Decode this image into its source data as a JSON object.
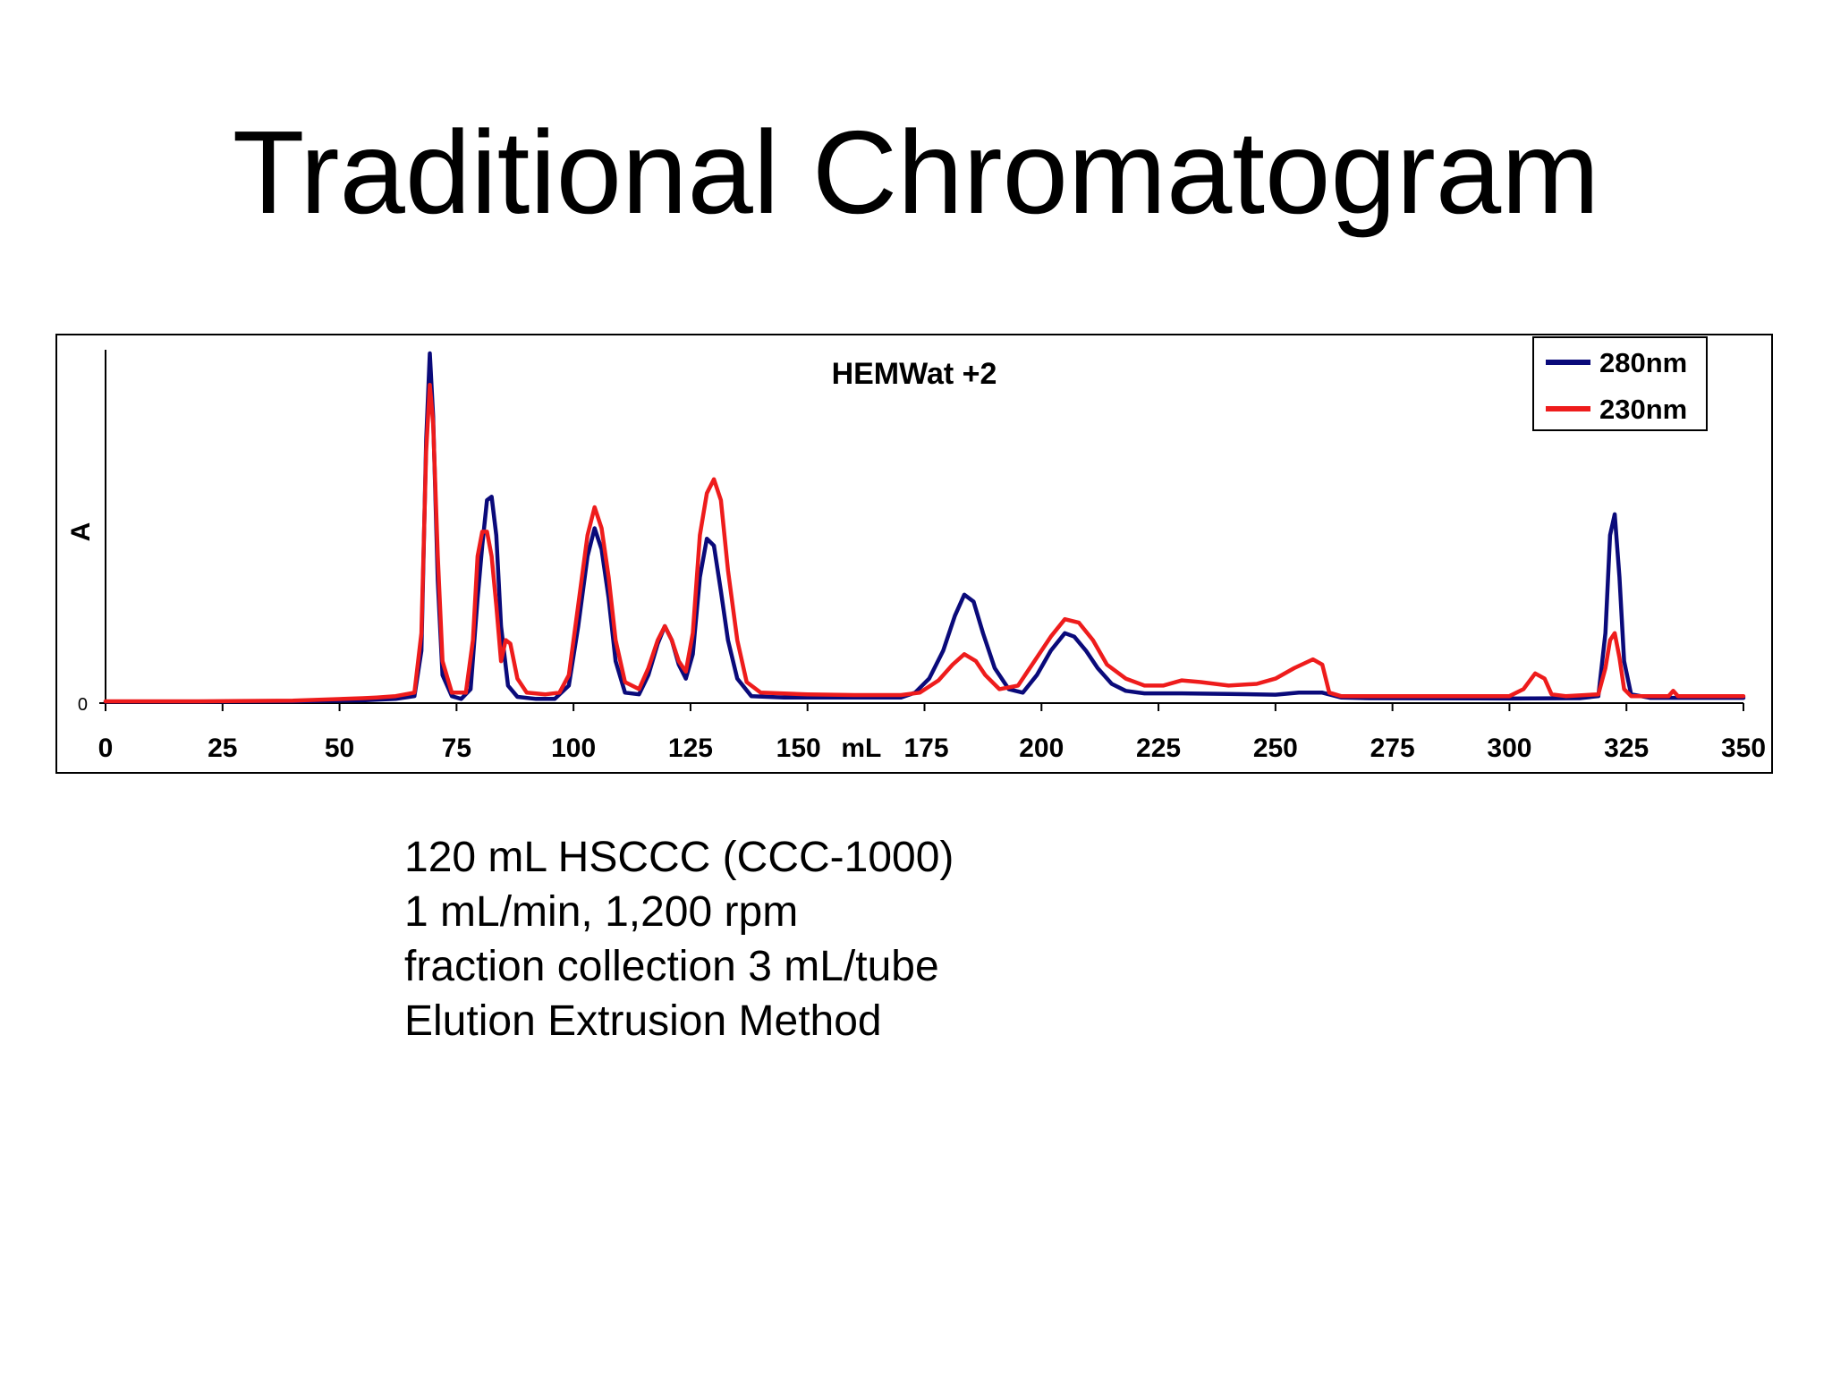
{
  "slide": {
    "title": "Traditional Chromatogram",
    "notes": [
      "120 mL HSCCC (CCC-1000)",
      "1 mL/min, 1,200 rpm",
      "fraction collection 3 mL/tube",
      "Elution Extrusion Method"
    ]
  },
  "chart_data": {
    "type": "line",
    "title": "HEMWat +2",
    "xlabel": "mL",
    "ylabel": "A",
    "xlim": [
      0,
      350
    ],
    "ylim": [
      0,
      100
    ],
    "x_ticks": [
      0,
      25,
      50,
      75,
      100,
      125,
      150,
      175,
      200,
      225,
      250,
      275,
      300,
      325,
      350
    ],
    "y_ticks": [
      0
    ],
    "legend_position": "top-right",
    "grid": false,
    "series": [
      {
        "name": "280nm",
        "color": "#0a0a7a",
        "points": [
          [
            0,
            0.4
          ],
          [
            20,
            0.4
          ],
          [
            40,
            0.5
          ],
          [
            55,
            0.8
          ],
          [
            62,
            1.2
          ],
          [
            66,
            2
          ],
          [
            67.5,
            15
          ],
          [
            68.5,
            75
          ],
          [
            69.3,
            100
          ],
          [
            70,
            82
          ],
          [
            71,
            35
          ],
          [
            72,
            8
          ],
          [
            74,
            2
          ],
          [
            76,
            1.2
          ],
          [
            78,
            4
          ],
          [
            79.5,
            30
          ],
          [
            80.5,
            45
          ],
          [
            81.5,
            58
          ],
          [
            82.5,
            59
          ],
          [
            83.5,
            48
          ],
          [
            84.5,
            22
          ],
          [
            86,
            5
          ],
          [
            88,
            1.8
          ],
          [
            92,
            1.2
          ],
          [
            96,
            1.2
          ],
          [
            99,
            5
          ],
          [
            101,
            22
          ],
          [
            103,
            42
          ],
          [
            104.5,
            50
          ],
          [
            106,
            44
          ],
          [
            107.5,
            30
          ],
          [
            109,
            12
          ],
          [
            111,
            3
          ],
          [
            114,
            2.5
          ],
          [
            116,
            8
          ],
          [
            118,
            17
          ],
          [
            119.5,
            22
          ],
          [
            121,
            18
          ],
          [
            122.5,
            11
          ],
          [
            124,
            7
          ],
          [
            125.5,
            14
          ],
          [
            127,
            36
          ],
          [
            128.5,
            47
          ],
          [
            130,
            45
          ],
          [
            131.5,
            32
          ],
          [
            133,
            18
          ],
          [
            135,
            7
          ],
          [
            138,
            2
          ],
          [
            145,
            1.6
          ],
          [
            160,
            1.6
          ],
          [
            170,
            1.6
          ],
          [
            173,
            3
          ],
          [
            176,
            7
          ],
          [
            179,
            15
          ],
          [
            181.5,
            25
          ],
          [
            183.5,
            31
          ],
          [
            185.5,
            29
          ],
          [
            187.5,
            20
          ],
          [
            190,
            10
          ],
          [
            193,
            4
          ],
          [
            196,
            3
          ],
          [
            199,
            8
          ],
          [
            202,
            15
          ],
          [
            205,
            20
          ],
          [
            207,
            19
          ],
          [
            209.5,
            15
          ],
          [
            212,
            10
          ],
          [
            215,
            5.5
          ],
          [
            218,
            3.5
          ],
          [
            222,
            2.8
          ],
          [
            230,
            2.8
          ],
          [
            240,
            2.6
          ],
          [
            250,
            2.4
          ],
          [
            255,
            3
          ],
          [
            260,
            3
          ],
          [
            264,
            1.6
          ],
          [
            270,
            1.4
          ],
          [
            300,
            1.3
          ],
          [
            315,
            1.4
          ],
          [
            319,
            2
          ],
          [
            320.5,
            20
          ],
          [
            321.5,
            48
          ],
          [
            322.5,
            54
          ],
          [
            323.5,
            36
          ],
          [
            324.5,
            12
          ],
          [
            326,
            2.5
          ],
          [
            330,
            1.5
          ],
          [
            340,
            1.5
          ],
          [
            350,
            1.5
          ]
        ]
      },
      {
        "name": "230nm",
        "color": "#ee1c1c",
        "points": [
          [
            0,
            0.5
          ],
          [
            20,
            0.5
          ],
          [
            40,
            0.7
          ],
          [
            55,
            1.4
          ],
          [
            58,
            1.6
          ],
          [
            62,
            2
          ],
          [
            66,
            3
          ],
          [
            67.5,
            20
          ],
          [
            68.5,
            72
          ],
          [
            69.3,
            91
          ],
          [
            70,
            80
          ],
          [
            71,
            42
          ],
          [
            72,
            12
          ],
          [
            74,
            3
          ],
          [
            77,
            3
          ],
          [
            78.5,
            18
          ],
          [
            79.5,
            42
          ],
          [
            80.5,
            49
          ],
          [
            81.5,
            49
          ],
          [
            82.5,
            42
          ],
          [
            83.5,
            28
          ],
          [
            84.5,
            12
          ],
          [
            85.5,
            18
          ],
          [
            86.5,
            17
          ],
          [
            88,
            7
          ],
          [
            90,
            3
          ],
          [
            94,
            2.5
          ],
          [
            97,
            3
          ],
          [
            99,
            8
          ],
          [
            101,
            28
          ],
          [
            103,
            48
          ],
          [
            104.5,
            56
          ],
          [
            106,
            50
          ],
          [
            107.5,
            36
          ],
          [
            109,
            18
          ],
          [
            111,
            6
          ],
          [
            114,
            4
          ],
          [
            116,
            10
          ],
          [
            118,
            18
          ],
          [
            119.5,
            22
          ],
          [
            121,
            18
          ],
          [
            122.5,
            12
          ],
          [
            124,
            9
          ],
          [
            125.5,
            20
          ],
          [
            127,
            48
          ],
          [
            128.5,
            60
          ],
          [
            130,
            64
          ],
          [
            131.5,
            58
          ],
          [
            133,
            38
          ],
          [
            135,
            18
          ],
          [
            137,
            6
          ],
          [
            140,
            3
          ],
          [
            150,
            2.5
          ],
          [
            160,
            2.3
          ],
          [
            170,
            2.3
          ],
          [
            174,
            3
          ],
          [
            178,
            6.5
          ],
          [
            181,
            11
          ],
          [
            183.5,
            14
          ],
          [
            186,
            12
          ],
          [
            188,
            8
          ],
          [
            191,
            4
          ],
          [
            195,
            5
          ],
          [
            198,
            11
          ],
          [
            202,
            19
          ],
          [
            205,
            24
          ],
          [
            208,
            23
          ],
          [
            211,
            18
          ],
          [
            214,
            11
          ],
          [
            218,
            7
          ],
          [
            222,
            5
          ],
          [
            226,
            5
          ],
          [
            230,
            6.5
          ],
          [
            234,
            6
          ],
          [
            240,
            5
          ],
          [
            246,
            5.5
          ],
          [
            250,
            7
          ],
          [
            254,
            10
          ],
          [
            258,
            12.5
          ],
          [
            260,
            11
          ],
          [
            261.5,
            3
          ],
          [
            264,
            2
          ],
          [
            275,
            2
          ],
          [
            300,
            2
          ],
          [
            303,
            4
          ],
          [
            305.5,
            8.5
          ],
          [
            307.5,
            7
          ],
          [
            309,
            2.5
          ],
          [
            312,
            2
          ],
          [
            319,
            2.5
          ],
          [
            320.5,
            10
          ],
          [
            321.5,
            18
          ],
          [
            322.5,
            20
          ],
          [
            323.5,
            13
          ],
          [
            324.5,
            4
          ],
          [
            326,
            2
          ],
          [
            334,
            2
          ],
          [
            335,
            3.5
          ],
          [
            336,
            2
          ],
          [
            350,
            2
          ]
        ]
      }
    ]
  }
}
